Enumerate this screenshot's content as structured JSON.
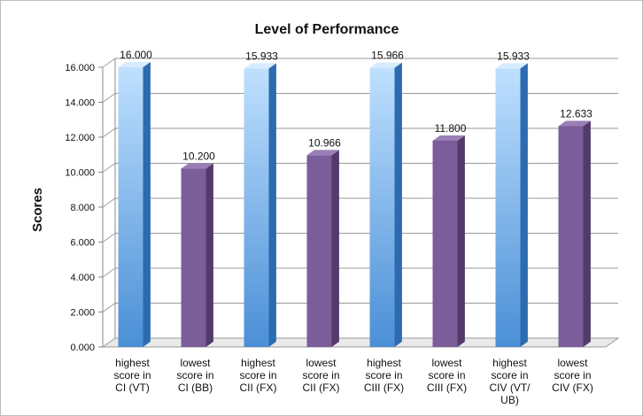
{
  "chart_data": {
    "type": "bar",
    "title": "Level of Performance",
    "xlabel": "",
    "ylabel": "Scores",
    "ylim": [
      0,
      16
    ],
    "yticks": [
      "0.000",
      "2.000",
      "4.000",
      "6.000",
      "8.000",
      "10.000",
      "12.000",
      "14.000",
      "16.000"
    ],
    "categories": [
      [
        "highest",
        "score in",
        "CI (VT)"
      ],
      [
        "lowest",
        "score in",
        "CI (BB)"
      ],
      [
        "highest",
        "score in",
        "CII (FX)"
      ],
      [
        "lowest",
        "score in",
        "CII (FX)"
      ],
      [
        "highest",
        "score in",
        "CIII (FX)"
      ],
      [
        "lowest",
        "score in",
        "CIII (FX)"
      ],
      [
        "highest",
        "score in",
        "CIV (VT/",
        "UB)"
      ],
      [
        "lowest",
        "score in",
        "CIV (FX)"
      ]
    ],
    "values": [
      16.0,
      10.2,
      15.933,
      10.966,
      15.966,
      11.8,
      15.933,
      12.633
    ],
    "data_labels": [
      "16.000",
      "10.200",
      "15.933",
      "10.966",
      "15.966",
      "11.800",
      "15.933",
      "12.633"
    ],
    "colors": {
      "highest_front_light": "#bfe0ff",
      "highest_front_dark": "#4a8fd6",
      "highest_side": "#2d6bb0",
      "highest_top": "#d8ecff",
      "lowest_front": "#7b5d99",
      "lowest_side": "#523b6b",
      "lowest_top": "#9a7fb6"
    },
    "grid": true,
    "legend": "none"
  }
}
